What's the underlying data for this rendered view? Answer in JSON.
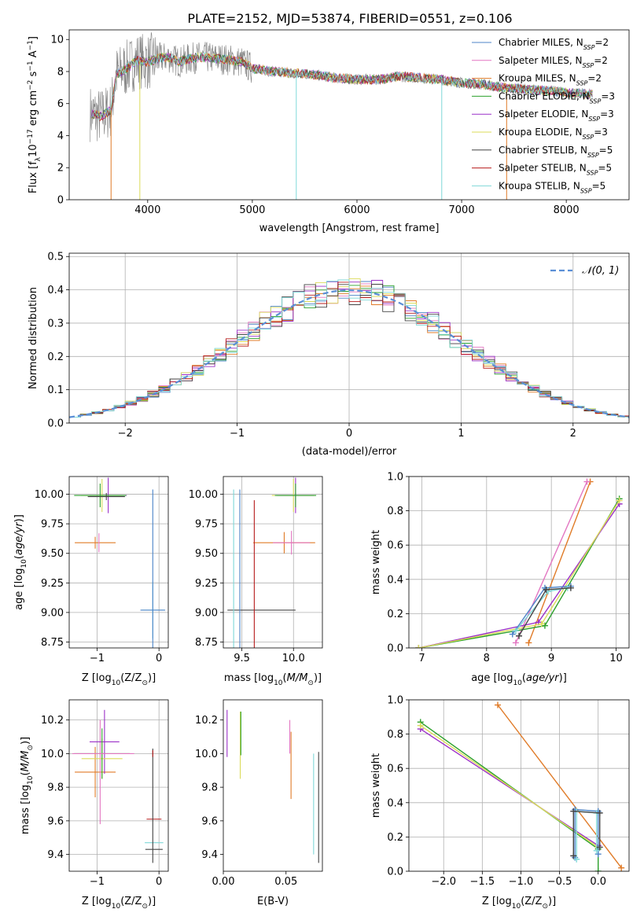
{
  "figure": {
    "title": "PLATE=2152, MJD=53874, FIBERID=0551, z=0.106"
  },
  "chart_data": [
    {
      "id": "spectrum",
      "type": "line",
      "xlabel": "wavelength [Angstrom, rest frame]",
      "ylabel_parts": [
        "Flux [f",
        "λ",
        "10",
        "−17",
        " erg cm",
        "−2",
        " s",
        "−1",
        " A",
        "−1",
        "]"
      ],
      "xlim": [
        3250,
        8600
      ],
      "ylim": [
        0,
        10.6
      ],
      "xticks": [
        4000,
        5000,
        6000,
        7000,
        8000
      ],
      "yticks": [
        0,
        2,
        4,
        6,
        8,
        10
      ],
      "grid": false,
      "legend_position": "right",
      "series": [
        {
          "name": "Chabrier MILES, N",
          "sub": "SSP",
          "suffix": "=2",
          "color": "#4c84c8"
        },
        {
          "name": "Salpeter MILES, N",
          "sub": "SSP",
          "suffix": "=2",
          "color": "#e377c2"
        },
        {
          "name": "Kroupa MILES, N",
          "sub": "SSP",
          "suffix": "=2",
          "color": "#e07b28"
        },
        {
          "name": "Chabrier ELODIE, N",
          "sub": "SSP",
          "suffix": "=3",
          "color": "#2ca02c"
        },
        {
          "name": "Salpeter ELODIE, N",
          "sub": "SSP",
          "suffix": "=3",
          "color": "#9b30c8"
        },
        {
          "name": "Kroupa ELODIE, N",
          "sub": "SSP",
          "suffix": "=3",
          "color": "#dbdb5a"
        },
        {
          "name": "Chabrier STELIB, N",
          "sub": "SSP",
          "suffix": "=5",
          "color": "#444444"
        },
        {
          "name": "Salpeter STELIB, N",
          "sub": "SSP",
          "suffix": "=5",
          "color": "#b71c1c"
        },
        {
          "name": "Kroupa STELIB, N",
          "sub": "SSP",
          "suffix": "=5",
          "color": "#7fd8d8"
        }
      ],
      "continuum": {
        "x": [
          3450,
          3550,
          3650,
          3700,
          3800,
          3900,
          4000,
          4100,
          4200,
          4300,
          4400,
          4500,
          4700,
          4900,
          5000,
          5200,
          5400,
          5600,
          5800,
          6000,
          6200,
          6400,
          6600,
          6800,
          7000,
          7200,
          7400,
          7600,
          7800,
          8000,
          8200
        ],
        "y": [
          5.4,
          5.2,
          5.6,
          7.8,
          8.2,
          8.7,
          8.6,
          8.8,
          8.9,
          8.6,
          8.8,
          8.9,
          8.8,
          8.6,
          8.2,
          8.0,
          7.9,
          7.8,
          7.6,
          7.5,
          7.5,
          7.7,
          7.6,
          7.5,
          7.3,
          7.2,
          7.0,
          6.9,
          6.8,
          6.7,
          6.6
        ]
      },
      "absorption_dips": [
        {
          "x": 3650,
          "y": 0
        },
        {
          "x": 3925,
          "y": 0
        },
        {
          "x": 5420,
          "y": 0
        },
        {
          "x": 6810,
          "y": 0
        },
        {
          "x": 7430,
          "y": 0
        }
      ]
    },
    {
      "id": "residuals",
      "type": "line",
      "xlabel": "(data-model)/error",
      "ylabel": "Normed distribution",
      "xlim": [
        -2.5,
        2.5
      ],
      "ylim": [
        0,
        0.51
      ],
      "xticks": [
        -2,
        -1,
        0,
        1,
        2
      ],
      "yticks": [
        0.0,
        0.1,
        0.2,
        0.3,
        0.4,
        0.5
      ],
      "grid": true,
      "legend_position": "top-right",
      "normal_label": "𝒩(0, 1)",
      "normal_color": "#5b8fd6",
      "bin_width": 0.1,
      "bin_start": -2.5
    },
    {
      "id": "age-Z",
      "type": "scatter",
      "xlabel_parts": [
        "Z [log",
        "10",
        "(Z/Z",
        "⊙",
        ")]"
      ],
      "ylabel_parts": [
        "age  [log",
        "10",
        "(",
        "age/yr",
        ")]"
      ],
      "xlim": [
        -1.45,
        0.15
      ],
      "ylim": [
        8.7,
        10.15
      ],
      "xticks": [
        -1,
        0
      ],
      "yticks": [
        8.75,
        9.0,
        9.25,
        9.5,
        9.75,
        10.0
      ],
      "grid": true,
      "points": [
        {
          "x": -1.03,
          "y": 9.59,
          "xerr": 0.33,
          "yerr": 0.05,
          "color": "#e07b28"
        },
        {
          "x": -0.97,
          "y": 9.59,
          "xerr": 0.0,
          "yerr": 0.08,
          "color": "#e377c2"
        },
        {
          "x": -0.82,
          "y": 9.99,
          "xerr": 0.3,
          "yerr": 0.15,
          "color": "#9b30c8"
        },
        {
          "x": -0.92,
          "y": 9.99,
          "xerr": 0.34,
          "yerr": 0.14,
          "color": "#dbdb5a"
        },
        {
          "x": -0.95,
          "y": 9.99,
          "xerr": 0.42,
          "yerr": 0.1,
          "color": "#2ca02c"
        },
        {
          "x": -0.85,
          "y": 9.98,
          "xerr": 0.3,
          "yerr": 0.03,
          "color": "#444444"
        },
        {
          "x": -0.1,
          "y": 9.02,
          "xerr": 0.18,
          "yerr": 0.24,
          "color": "#7fd8d8"
        },
        {
          "x": -0.1,
          "y": 9.02,
          "xerr": 0.2,
          "yerr": 1.02,
          "color": "#4c84c8"
        }
      ]
    },
    {
      "id": "age-mass",
      "type": "scatter",
      "xlabel_parts": [
        "mass [log",
        "10",
        "(",
        "M/M",
        "⊙",
        ")]"
      ],
      "xlim": [
        9.32,
        10.28
      ],
      "ylim": [
        8.7,
        10.15
      ],
      "xticks": [
        9.5,
        10.0
      ],
      "yticks": [
        8.75,
        9.0,
        9.25,
        9.5,
        9.75,
        10.0
      ],
      "grid": true,
      "points": [
        {
          "x": 9.91,
          "y": 9.59,
          "xerr": 0.3,
          "yerr": 0.09,
          "color": "#e07b28"
        },
        {
          "x": 9.98,
          "y": 9.59,
          "xerr": 0.18,
          "yerr": 0.1,
          "color": "#e377c2"
        },
        {
          "x": 10.02,
          "y": 9.99,
          "xerr": 0.18,
          "yerr": 0.15,
          "color": "#9b30c8"
        },
        {
          "x": 10.0,
          "y": 9.99,
          "xerr": 0.21,
          "yerr": 0.14,
          "color": "#dbdb5a"
        },
        {
          "x": 10.02,
          "y": 9.99,
          "xerr": 0.2,
          "yerr": 0.1,
          "color": "#2ca02c"
        },
        {
          "x": 9.69,
          "y": 9.02,
          "xerr": 0.33,
          "yerr": 0.0,
          "color": "#444444"
        },
        {
          "x": 9.62,
          "y": 9.02,
          "xerr": 0.0,
          "yerr": 0.93,
          "color": "#b71c1c"
        },
        {
          "x": 9.48,
          "y": 9.02,
          "xerr": 0.0,
          "yerr": 1.02,
          "color": "#4c84c8"
        },
        {
          "x": 9.42,
          "y": 9.02,
          "xerr": 0.0,
          "yerr": 1.02,
          "color": "#7fd8d8"
        }
      ]
    },
    {
      "id": "weight-age",
      "type": "line",
      "xlabel_parts": [
        "age  [log",
        "10",
        "(",
        "age/yr",
        ")]"
      ],
      "ylabel": "mass weight",
      "xlim": [
        6.8,
        10.2
      ],
      "ylim": [
        0,
        1.0
      ],
      "xticks": [
        7,
        8,
        9,
        10
      ],
      "yticks": [
        0.0,
        0.2,
        0.4,
        0.6,
        0.8,
        1.0
      ],
      "grid": true,
      "series": [
        {
          "color": "#e07b28",
          "x": [
            8.65,
            9.6
          ],
          "y": [
            0.03,
            0.97
          ]
        },
        {
          "color": "#e377c2",
          "x": [
            8.45,
            9.55
          ],
          "y": [
            0.03,
            0.97
          ]
        },
        {
          "color": "#2ca02c",
          "x": [
            6.95,
            8.9,
            10.05
          ],
          "y": [
            0.0,
            0.13,
            0.87
          ]
        },
        {
          "color": "#9b30c8",
          "x": [
            6.95,
            8.8,
            10.05
          ],
          "y": [
            0.0,
            0.15,
            0.84
          ]
        },
        {
          "color": "#dbdb5a",
          "x": [
            6.95,
            8.85,
            10.05
          ],
          "y": [
            0.0,
            0.14,
            0.86
          ]
        },
        {
          "color": "#4c84c8",
          "x": [
            8.4,
            8.9,
            9.3
          ],
          "y": [
            0.08,
            0.35,
            0.36
          ]
        },
        {
          "color": "#7fd8d8",
          "x": [
            8.45,
            8.95,
            9.25
          ],
          "y": [
            0.1,
            0.33,
            0.35
          ]
        },
        {
          "color": "#444444",
          "x": [
            8.5,
            8.92,
            9.3
          ],
          "y": [
            0.07,
            0.34,
            0.35
          ]
        }
      ]
    },
    {
      "id": "mass-Z",
      "type": "scatter",
      "xlabel_parts": [
        "Z [log",
        "10",
        "(Z/Z",
        "⊙",
        ")]"
      ],
      "ylabel_parts": [
        "mass [log",
        "10",
        "(",
        "M/M",
        "⊙",
        ")]"
      ],
      "xlim": [
        -1.45,
        0.15
      ],
      "ylim": [
        9.3,
        10.32
      ],
      "xticks": [
        -1,
        0
      ],
      "yticks": [
        9.4,
        9.6,
        9.8,
        10.0,
        10.2
      ],
      "grid": true,
      "points": [
        {
          "x": -1.03,
          "y": 9.89,
          "xerr": 0.33,
          "yerr": 0.15,
          "color": "#e07b28"
        },
        {
          "x": -0.95,
          "y": 9.89,
          "xerr": 0.0,
          "yerr": 0.31,
          "color": "#e377c2"
        },
        {
          "x": -0.88,
          "y": 10.07,
          "xerr": 0.24,
          "yerr": 0.19,
          "color": "#9b30c8"
        },
        {
          "x": -0.92,
          "y": 9.97,
          "xerr": 0.33,
          "yerr": 0.12,
          "color": "#dbdb5a"
        },
        {
          "x": -0.92,
          "y": 10.0,
          "xerr": 0.45,
          "yerr": 0.15,
          "color": "#2ca02c"
        },
        {
          "x": -0.9,
          "y": 10.0,
          "xerr": 0.5,
          "yerr": 0.0,
          "color": "#e377c2"
        },
        {
          "x": -0.08,
          "y": 9.61,
          "xerr": 0.12,
          "yerr": 0.0,
          "color": "#b71c1c"
        },
        {
          "x": -0.08,
          "y": 9.47,
          "xerr": 0.15,
          "yerr": 0.0,
          "color": "#7fd8d8"
        },
        {
          "x": -0.08,
          "y": 9.43,
          "xerr": 0.14,
          "yerr": 0.0,
          "color": "#444444"
        },
        {
          "x": -0.1,
          "y": 9.69,
          "xerr": 0.0,
          "yerr": 0.34,
          "color": "#444444"
        },
        {
          "x": -0.1,
          "y": 10.0,
          "xerr": 0.0,
          "yerr": 0.02,
          "color": "#b71c1c"
        }
      ]
    },
    {
      "id": "mass-ebv",
      "type": "scatter",
      "xlabel": "E(B-V)",
      "xlim": [
        0.0,
        0.079
      ],
      "ylim": [
        9.3,
        10.32
      ],
      "xticks": [
        0.0,
        0.05
      ],
      "yticks": [
        9.4,
        9.6,
        9.8,
        10.0,
        10.2
      ],
      "grid": false,
      "points": [
        {
          "x": 0.003,
          "y": 10.12,
          "yerr": 0.14,
          "color": "#9b30c8"
        },
        {
          "x": 0.0135,
          "y": 10.05,
          "yerr": 0.2,
          "color": "#dbdb5a"
        },
        {
          "x": 0.014,
          "y": 10.12,
          "yerr": 0.13,
          "color": "#2ca02c"
        },
        {
          "x": 0.054,
          "y": 9.93,
          "yerr": 0.2,
          "color": "#e07b28"
        },
        {
          "x": 0.053,
          "y": 10.1,
          "yerr": 0.1,
          "color": "#e377c2"
        },
        {
          "x": 0.072,
          "y": 9.7,
          "yerr": 0.3,
          "color": "#7fd8d8"
        },
        {
          "x": 0.076,
          "y": 9.68,
          "yerr": 0.33,
          "color": "#444444"
        }
      ]
    },
    {
      "id": "weight-Z",
      "type": "line",
      "xlabel_parts": [
        "Z [log",
        "10",
        "(Z/Z",
        "⊙",
        ")]"
      ],
      "ylabel": "mass weight",
      "xlim": [
        -2.45,
        0.4
      ],
      "ylim": [
        0,
        1.0
      ],
      "xticks": [
        -2.0,
        -1.5,
        -1.0,
        -0.5,
        0.0
      ],
      "yticks": [
        0.0,
        0.2,
        0.4,
        0.6,
        0.8,
        1.0
      ],
      "grid": true,
      "series": [
        {
          "color": "#e07b28",
          "x": [
            -1.3,
            0.3
          ],
          "y": [
            0.97,
            0.02
          ]
        },
        {
          "color": "#2ca02c",
          "x": [
            -2.3,
            0.0,
            0.0
          ],
          "y": [
            0.87,
            0.13,
            0.0
          ]
        },
        {
          "color": "#9b30c8",
          "x": [
            -2.3,
            0.0
          ],
          "y": [
            0.83,
            0.15
          ]
        },
        {
          "color": "#dbdb5a",
          "x": [
            -2.3,
            0.0
          ],
          "y": [
            0.85,
            0.14
          ]
        },
        {
          "color": "#4c84c8",
          "x": [
            -0.3,
            -0.3,
            0.0,
            0.0
          ],
          "y": [
            0.08,
            0.36,
            0.35,
            0.1
          ]
        },
        {
          "color": "#7fd8d8",
          "x": [
            -0.28,
            -0.28,
            -0.02,
            -0.02
          ],
          "y": [
            0.07,
            0.35,
            0.34,
            0.12
          ]
        },
        {
          "color": "#444444",
          "x": [
            -0.32,
            -0.32,
            0.02,
            0.02
          ],
          "y": [
            0.09,
            0.35,
            0.34,
            0.14
          ]
        }
      ]
    }
  ]
}
